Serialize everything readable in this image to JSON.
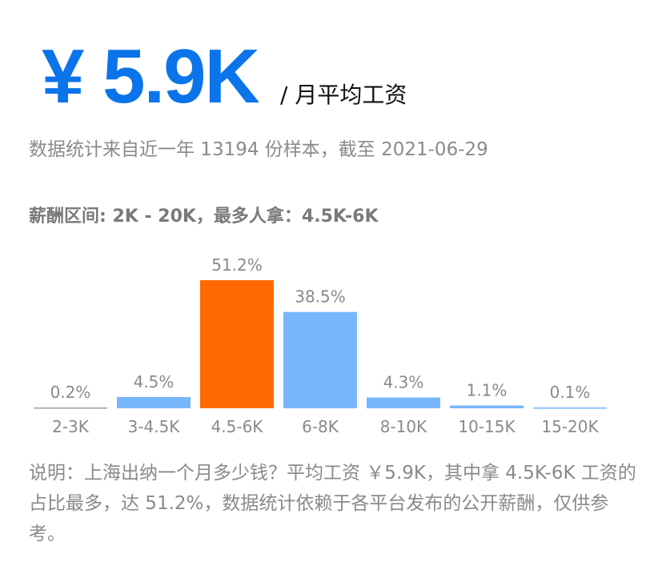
{
  "header": {
    "salary": "¥ 5.9K",
    "unit": "/ 月平均工资"
  },
  "subtitle": "数据统计来自近一年 13194 份样本，截至 2021-06-29",
  "range_line": "薪酬区间: 2K - 20K，最多人拿：4.5K-6K",
  "note": "说明：上海出纳一个月多少钱？平均工资 ￥5.9K，其中拿 4.5K-6K 工资的占比最多，达 51.2%，数据统计依赖于各平台发布的公开薪酬，仅供参考。",
  "colors": {
    "accent": "#0b74ea",
    "bar_normal": "#77b6fb",
    "bar_highlight": "#ff6a00",
    "label_text": "#8a8a8a"
  },
  "chart_data": {
    "type": "bar",
    "categories": [
      "2-3K",
      "3-4.5K",
      "4.5-6K",
      "6-8K",
      "8-10K",
      "10-15K",
      "15-20K"
    ],
    "values": [
      0.2,
      4.5,
      51.2,
      38.5,
      4.3,
      1.1,
      0.1
    ],
    "value_labels": [
      "0.2%",
      "4.5%",
      "51.2%",
      "38.5%",
      "4.3%",
      "1.1%",
      "0.1%"
    ],
    "highlight_index": 2,
    "title": "",
    "xlabel": "",
    "ylabel": "",
    "ylim": [
      0,
      51.2
    ],
    "grid": false,
    "legend": "none"
  }
}
